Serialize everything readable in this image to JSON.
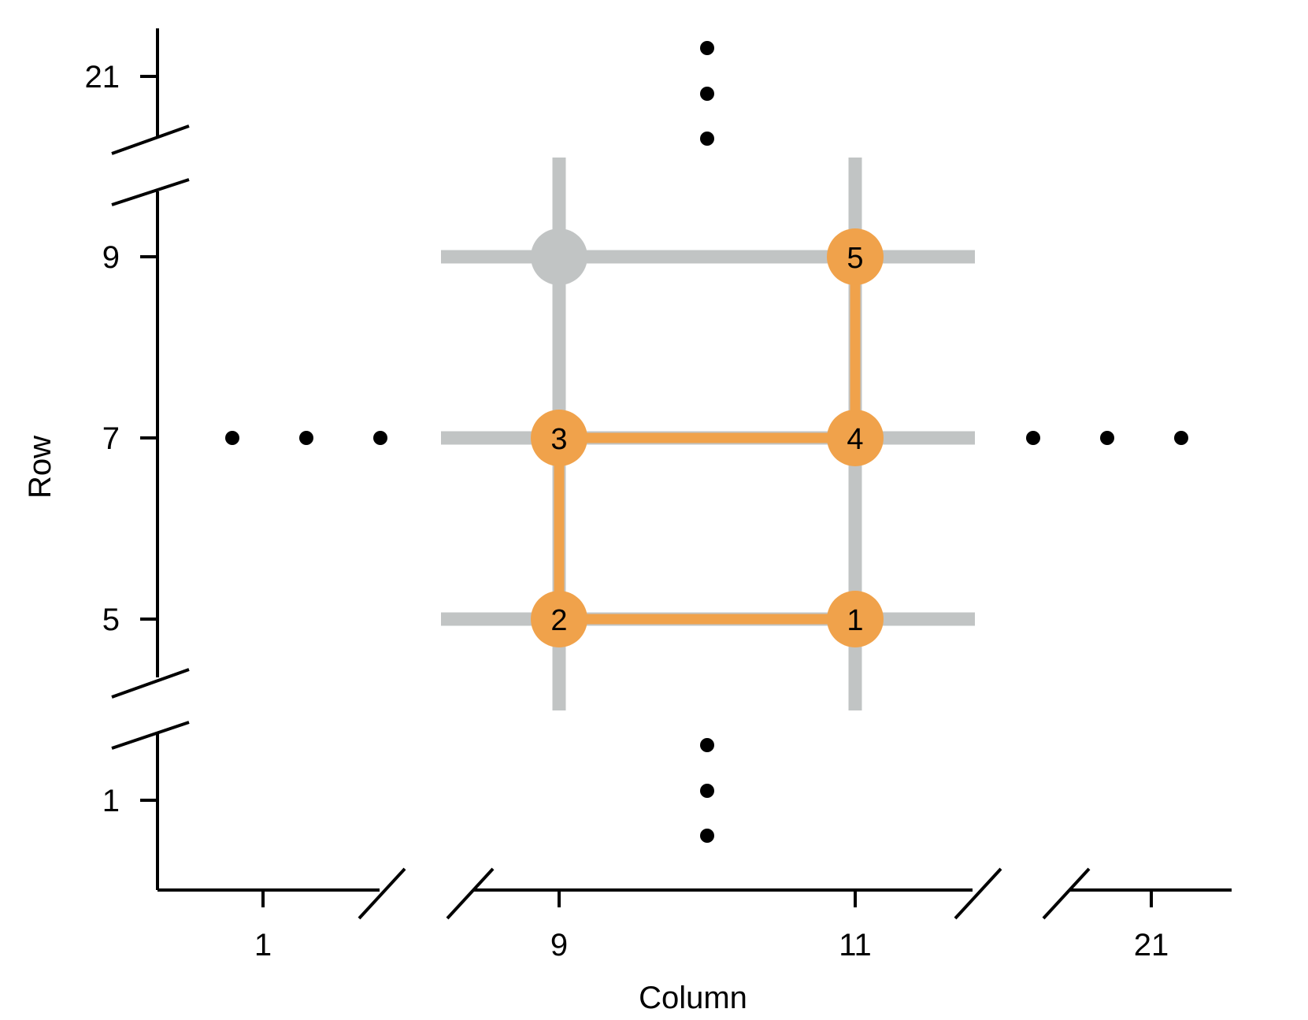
{
  "chart_data": {
    "type": "scatter",
    "xlabel": "Column",
    "ylabel": "Row",
    "x_ticks": [
      {
        "label": "1",
        "value": 1
      },
      {
        "label": "9",
        "value": 9
      },
      {
        "label": "11",
        "value": 11
      },
      {
        "label": "21",
        "value": 21
      }
    ],
    "y_ticks": [
      {
        "label": "1",
        "value": 1
      },
      {
        "label": "5",
        "value": 5
      },
      {
        "label": "7",
        "value": 7
      },
      {
        "label": "9",
        "value": 9
      },
      {
        "label": "21",
        "value": 21
      }
    ],
    "x_axis_breaks": [
      "between 1 and 9",
      "between 11 and 21"
    ],
    "y_axis_breaks": [
      "between 1 and 5",
      "between 9 and 21"
    ],
    "grid_lines": {
      "columns": [
        9,
        11
      ],
      "rows": [
        5,
        7,
        9
      ]
    },
    "path": [
      {
        "label": "1",
        "column": 11,
        "row": 5
      },
      {
        "label": "2",
        "column": 9,
        "row": 5
      },
      {
        "label": "3",
        "column": 9,
        "row": 7
      },
      {
        "label": "4",
        "column": 11,
        "row": 7
      },
      {
        "label": "5",
        "column": 11,
        "row": 9
      }
    ],
    "unvisited_nodes": [
      {
        "column": 9,
        "row": 9
      }
    ],
    "ellipses": [
      {
        "direction": "left",
        "row": 7
      },
      {
        "direction": "right",
        "row": 7
      },
      {
        "direction": "up",
        "column": 10
      },
      {
        "direction": "down",
        "column": 10
      }
    ],
    "colors": {
      "path": "#F0A24B",
      "grid": "#C1C4C4",
      "axis": "#000000",
      "dots": "#000000"
    }
  }
}
